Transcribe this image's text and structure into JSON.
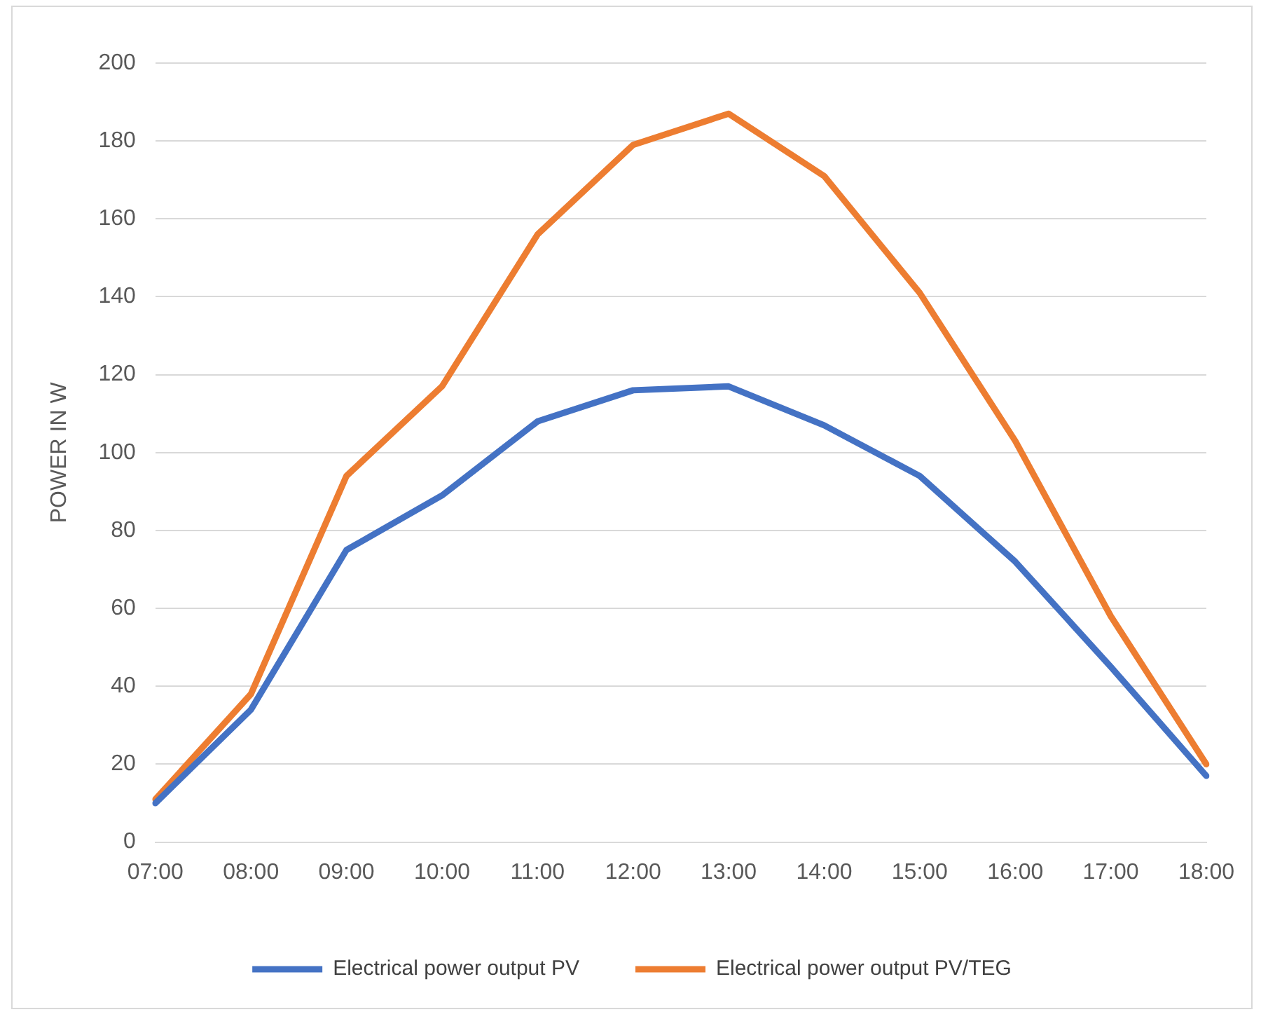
{
  "chart_data": {
    "type": "line",
    "ylabel": "POWER IN W",
    "categories": [
      "07:00",
      "08:00",
      "09:00",
      "10:00",
      "11:00",
      "12:00",
      "13:00",
      "14:00",
      "15:00",
      "16:00",
      "17:00",
      "18:00"
    ],
    "series": [
      {
        "name": "Electrical power output PV",
        "color": "#4472c4",
        "values": [
          10,
          34,
          75,
          89,
          108,
          116,
          117,
          107,
          94,
          72,
          45,
          17
        ]
      },
      {
        "name": "Electrical power output PV/TEG",
        "color": "#ed7d31",
        "values": [
          11,
          38,
          94,
          117,
          156,
          179,
          187,
          171,
          141,
          103,
          58,
          20
        ]
      }
    ],
    "ylim": [
      0,
      200
    ],
    "yticks": [
      0,
      20,
      40,
      60,
      80,
      100,
      120,
      140,
      160,
      180,
      200
    ],
    "grid": "y",
    "legend": "bottom",
    "marker": "none",
    "line_style": "solid"
  }
}
